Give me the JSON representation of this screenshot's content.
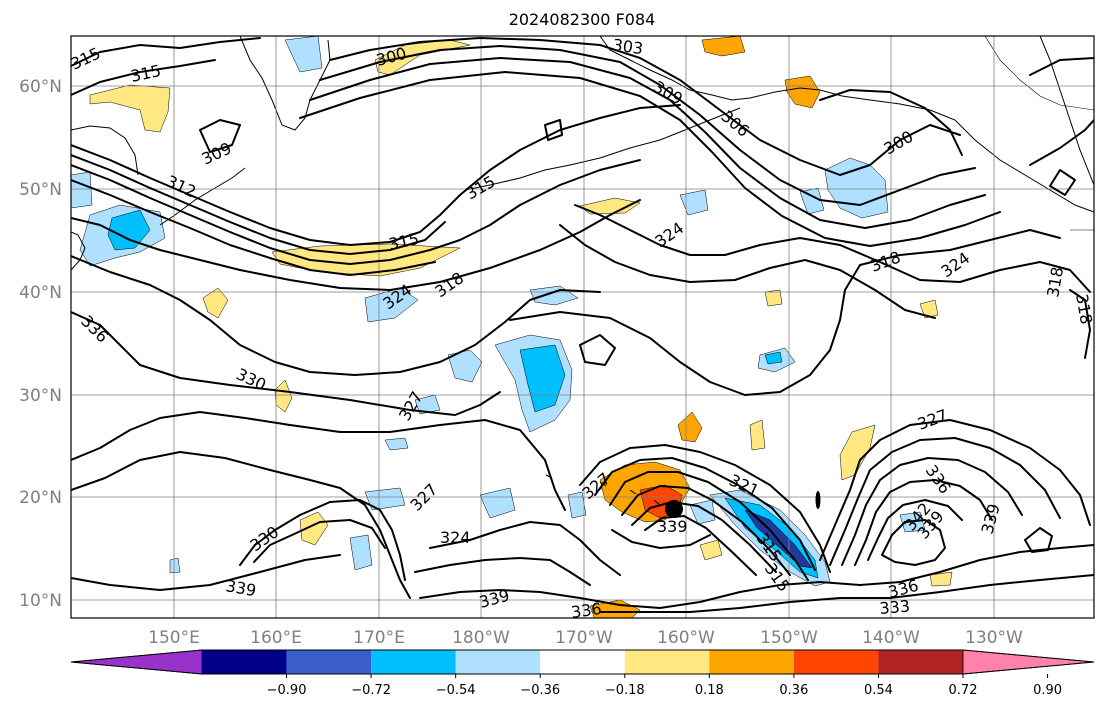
{
  "title": "2024082300 F084",
  "map": {
    "lat_labels": [
      "60°N",
      "50°N",
      "40°N",
      "30°N",
      "20°N",
      "10°N"
    ],
    "lon_labels": [
      "150°E",
      "160°E",
      "170°E",
      "180°W",
      "170°W",
      "160°W",
      "150°W",
      "140°W",
      "130°W"
    ],
    "contour_labels": [
      "303",
      "300",
      "315",
      "315",
      "309",
      "312",
      "315",
      "315",
      "318",
      "324",
      "324",
      "309",
      "306",
      "300",
      "318",
      "324",
      "318",
      "318",
      "336",
      "330",
      "327",
      "327",
      "327",
      "321",
      "339",
      "330",
      "324",
      "339",
      "339",
      "336",
      "336",
      "333",
      "336",
      "342",
      "339",
      "339",
      "327",
      "315"
    ],
    "shading_colors": {
      "neg_strong": "#00bfff",
      "neg_weak": "#b0e0ff",
      "pos_weak": "#ffe882",
      "pos_mid": "#ffa500",
      "dark_blue": "#1e3a9a"
    }
  },
  "colorbar": {
    "segments": [
      "#9932cc",
      "#00008b",
      "#3a5fcd",
      "#00bfff",
      "#b0e0ff",
      "#ffffff",
      "#ffe882",
      "#ffa500",
      "#ff4500",
      "#b22222",
      "#ff82ab"
    ],
    "labels": [
      "−0.90",
      "−0.72",
      "−0.54",
      "−0.36",
      "−0.18",
      "0.18",
      "0.36",
      "0.54",
      "0.72",
      "0.90"
    ]
  }
}
